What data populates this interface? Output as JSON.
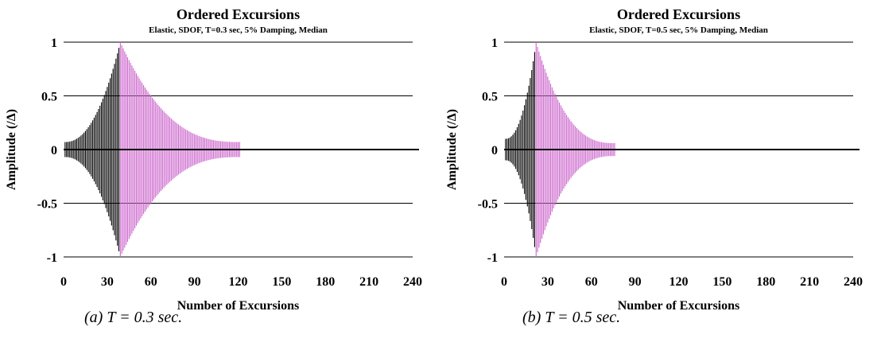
{
  "chart_data": [
    {
      "type": "bar",
      "title": "Ordered Excursions",
      "subtitle": "Elastic, SDOF, T=0.3 sec, 5% Damping, Median",
      "xlabel": "Number of Excursions",
      "ylabel": "Amplitude (/Δ)",
      "xlim": [
        0,
        240
      ],
      "ylim": [
        -1,
        1
      ],
      "x_ticks": [
        "0",
        "30",
        "60",
        "90",
        "120",
        "150",
        "180",
        "210",
        "240"
      ],
      "y_ticks": [
        "1",
        "0.5",
        "0",
        "-0.5",
        "-1"
      ],
      "grid": "horizontal",
      "legend": "none",
      "caption": "(a) T = 0.3 sec.",
      "excursions": 121,
      "peak_at": 39,
      "start_amplitude": 0.07,
      "end_amplitude": 0.07,
      "series": [
        {
          "values_description_only": false,
          "x_range": [
            1,
            39
          ],
          "amplitude_range": [
            0.07,
            1.0
          ],
          "color": "#000000"
        },
        {
          "x_range": [
            39,
            121
          ],
          "amplitude_range": [
            1.0,
            0.07
          ],
          "color": "#cc66cc"
        }
      ]
    },
    {
      "type": "bar",
      "title": "Ordered Excursions",
      "subtitle": "Elastic, SDOF, T=0.5 sec, 5% Damping, Median",
      "xlabel": "Number of Excursions",
      "ylabel": "Amplitude (/Δ)",
      "xlim": [
        0,
        240
      ],
      "ylim": [
        -1,
        1
      ],
      "x_ticks": [
        "0",
        "30",
        "60",
        "90",
        "120",
        "150",
        "180",
        "210",
        "240"
      ],
      "y_ticks": [
        "1",
        "0.5",
        "0",
        "-0.5",
        "-1"
      ],
      "grid": "horizontal",
      "legend": "none",
      "caption": "(b) T = 0.5 sec.",
      "excursions": 76,
      "peak_at": 22,
      "start_amplitude": 0.1,
      "end_amplitude": 0.06,
      "series": [
        {
          "x_range": [
            1,
            22
          ],
          "amplitude_range": [
            0.1,
            1.0
          ],
          "color": "#000000"
        },
        {
          "x_range": [
            22,
            76
          ],
          "amplitude_range": [
            1.0,
            0.06
          ],
          "color": "#cc66cc"
        }
      ]
    }
  ]
}
